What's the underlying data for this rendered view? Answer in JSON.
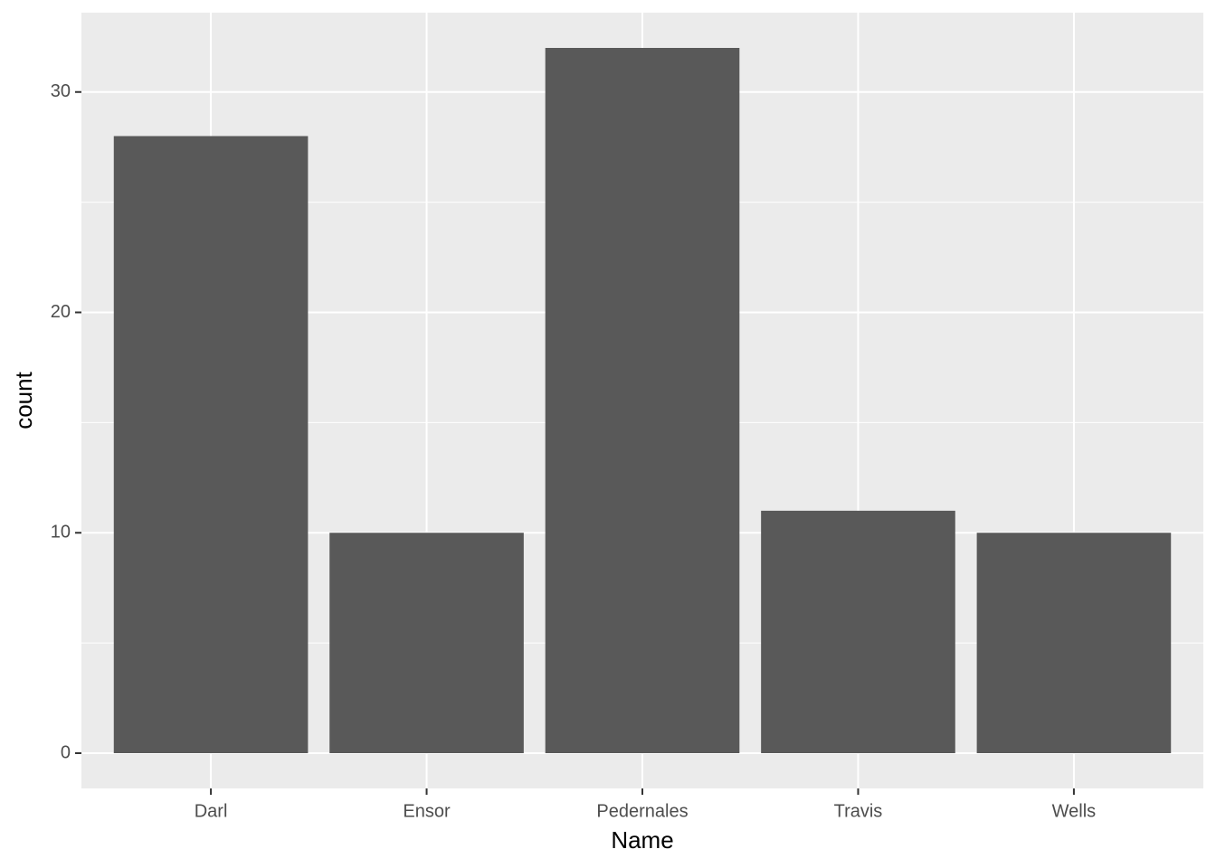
{
  "chart_data": {
    "type": "bar",
    "x_label": "Name",
    "y_label": "count",
    "categories": [
      "Darl",
      "Ensor",
      "Pedernales",
      "Travis",
      "Wells"
    ],
    "values": [
      28,
      10,
      32,
      11,
      10
    ],
    "color": "#595959",
    "ylim": [
      -1.6,
      33.6
    ],
    "yticks": [
      0,
      10,
      20,
      30
    ],
    "y_minor_ticks": [
      5,
      15,
      25
    ],
    "grid": true
  }
}
